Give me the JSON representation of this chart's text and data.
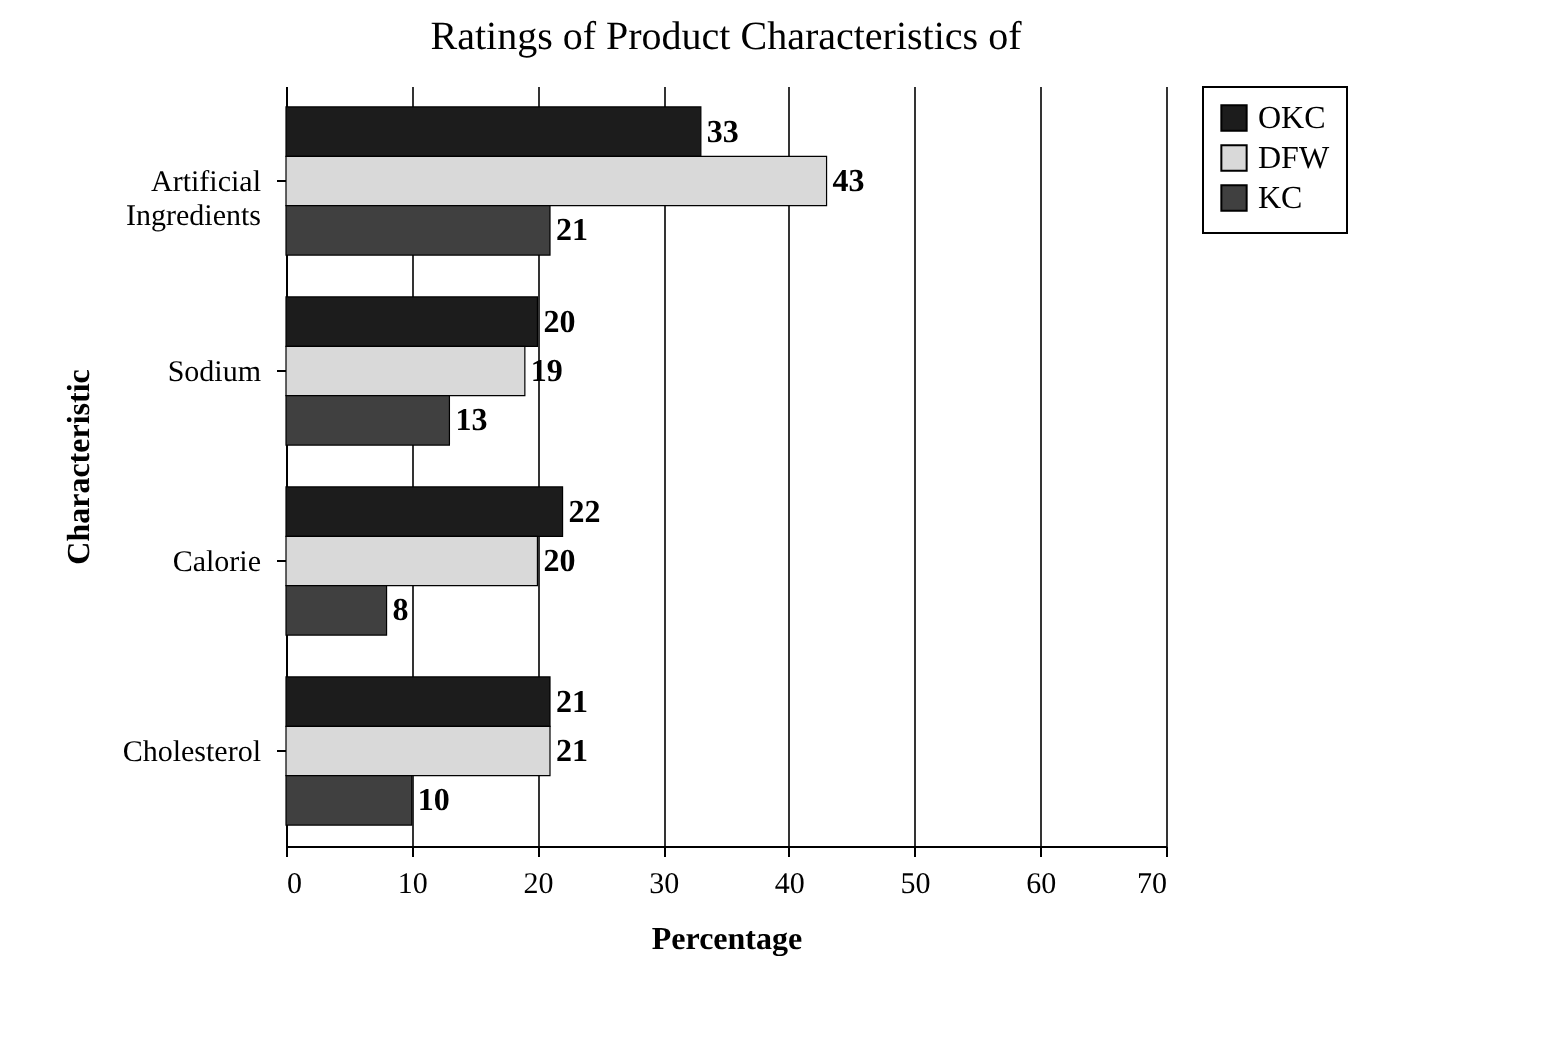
{
  "chart_data": {
    "type": "bar",
    "orientation": "horizontal",
    "title": "Ratings of Product Characteristics of",
    "xlabel": "Percentage",
    "ylabel": "Characteristic",
    "categories": [
      "Artificial Ingredients",
      "Sodium",
      "Calorie",
      "Cholesterol"
    ],
    "series": [
      {
        "name": "OKC",
        "color": "#1c1c1c",
        "values": [
          33,
          20,
          22,
          21
        ]
      },
      {
        "name": "DFW",
        "color": "#d9d9d9",
        "values": [
          43,
          19,
          20,
          21
        ]
      },
      {
        "name": "KC",
        "color": "#404040",
        "values": [
          21,
          13,
          8,
          10
        ]
      }
    ],
    "xlim": [
      0,
      70
    ],
    "xticks": [
      0,
      10,
      20,
      30,
      40,
      50,
      60,
      70
    ],
    "grid": "x",
    "legend": "right",
    "data_labels": true
  }
}
